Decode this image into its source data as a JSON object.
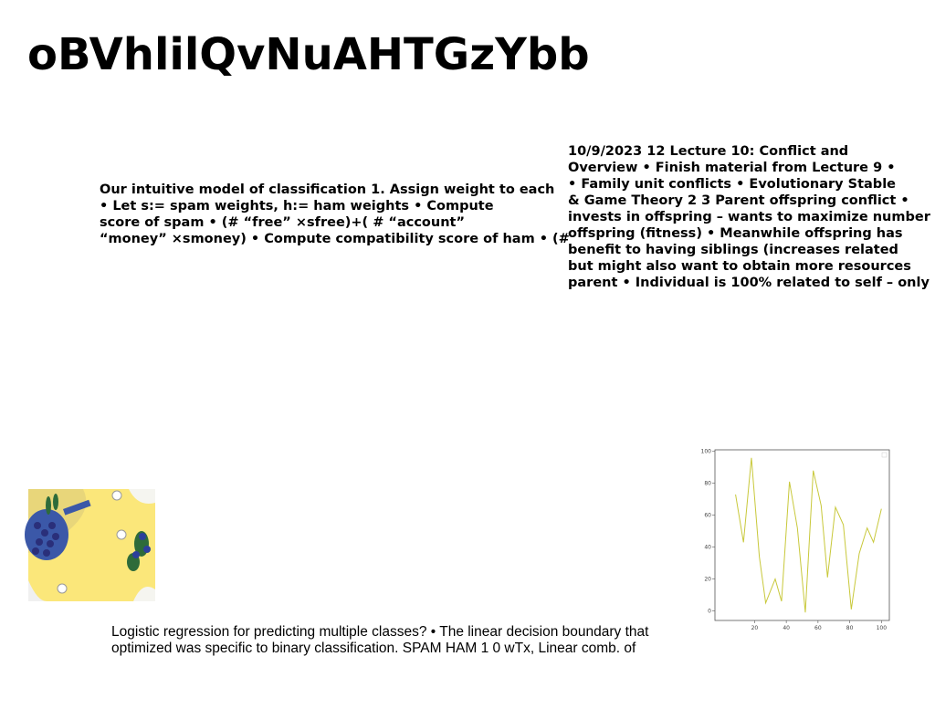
{
  "title": "oBVhlilQvNuAHTGzYbb",
  "blocks": [
    {
      "lines": [
        "Our intuitive model of classification 1. Assign weight to each",
        "• Let s:= spam weights, h:= ham weights • Compute",
        "score of spam • (# “free” ×sfree)+( # “account”",
        "“money” ×smoney) • Compute compatibility score of ham • (#"
      ]
    },
    {
      "lines": [
        "10/9/2023 12 Lecture 10: Conflict and",
        "Overview • Finish material from Lecture 9 •",
        "• Family unit conflicts • Evolutionary Stable",
        "& Game Theory 2 3 Parent offspring conflict •",
        "invests in offspring – wants to maximize number",
        "offspring (fitness) • Meanwhile offspring has",
        "benefit to having siblings (increases related",
        "but might also want to obtain more resources",
        "parent • Individual is 100% related to self – only"
      ]
    },
    {
      "lines": [
        "Logistic regression for predicting multiple classes? • The linear decision boundary that",
        "optimized was specific to binary classification. SPAM HAM 1 0 wTx, Linear comb. of"
      ]
    }
  ],
  "chart": {
    "type": "line",
    "color": "#c8c83a",
    "x": [
      8,
      13,
      18,
      23,
      27,
      33,
      37,
      42,
      47,
      52,
      57,
      62,
      66,
      71,
      76,
      81,
      86,
      91,
      95,
      100
    ],
    "values": [
      73,
      43,
      96,
      34,
      5,
      20,
      6,
      81,
      52,
      -1,
      88,
      66,
      21,
      65,
      54,
      1,
      36,
      52,
      43,
      64
    ],
    "xlim": [
      -5,
      105
    ],
    "ylim": [
      -6,
      101
    ],
    "xticks": [
      20,
      40,
      60,
      80,
      100
    ],
    "yticks": [
      0,
      20,
      40,
      60,
      80,
      100
    ]
  }
}
